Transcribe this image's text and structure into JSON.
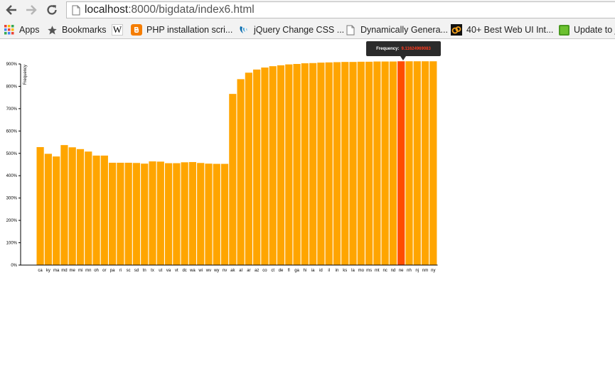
{
  "browser": {
    "url_host": "localhost",
    "url_path": ":8000/bigdata/index6.html",
    "bookmarks": [
      {
        "label": "Apps",
        "icon": "apps-grid-icon"
      },
      {
        "label": "Bookmarks",
        "icon": "star-icon"
      },
      {
        "label": "",
        "icon": "wikipedia-icon"
      },
      {
        "label": "PHP installation scri...",
        "icon": "blogger-icon"
      },
      {
        "label": "jQuery Change CSS ...",
        "icon": "jquery-icon"
      },
      {
        "label": "Dynamically Genera...",
        "icon": "page-icon"
      },
      {
        "label": "40+ Best Web UI Int...",
        "icon": "site-logo-icon"
      },
      {
        "label": "Update to j",
        "icon": "green-square-icon"
      }
    ]
  },
  "tooltip": {
    "label": "Frequency:",
    "value": "9.11624969083"
  },
  "chart_data": {
    "type": "bar",
    "ylabel": "Frequency",
    "xlabel": "",
    "ylim": [
      0,
      9
    ],
    "yticks": [
      "0%",
      "100%",
      "200%",
      "300%",
      "400%",
      "500%",
      "600%",
      "700%",
      "800%",
      "900%"
    ],
    "highlight_color": "#ff4c00",
    "bar_color": "#ffa500",
    "highlighted_category": "ne",
    "categories": [
      "ca",
      "ky",
      "ma",
      "md",
      "me",
      "mi",
      "mn",
      "oh",
      "or",
      "pa",
      "ri",
      "sc",
      "sd",
      "tn",
      "tx",
      "ut",
      "va",
      "vt",
      "dc",
      "wa",
      "wi",
      "wv",
      "wy",
      "nv",
      "ak",
      "al",
      "ar",
      "az",
      "co",
      "ct",
      "de",
      "fl",
      "ga",
      "hi",
      "ia",
      "id",
      "il",
      "in",
      "ks",
      "la",
      "mo",
      "ms",
      "mt",
      "nc",
      "nd",
      "ne",
      "nh",
      "nj",
      "nm",
      "ny"
    ],
    "values": [
      5.28,
      4.98,
      4.86,
      5.37,
      5.27,
      5.19,
      5.08,
      4.9,
      4.9,
      4.58,
      4.58,
      4.58,
      4.57,
      4.54,
      4.64,
      4.63,
      4.56,
      4.56,
      4.6,
      4.61,
      4.57,
      4.54,
      4.53,
      4.53,
      7.66,
      8.32,
      8.61,
      8.75,
      8.84,
      8.9,
      8.94,
      8.98,
      9.0,
      9.03,
      9.04,
      9.06,
      9.07,
      9.08,
      9.09,
      9.09,
      9.1,
      9.1,
      9.11,
      9.11,
      9.11,
      9.12,
      9.12,
      9.12,
      9.12,
      9.12
    ]
  }
}
